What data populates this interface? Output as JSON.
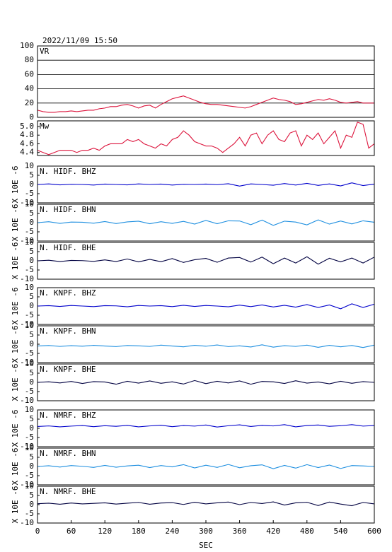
{
  "title": "2022/11/09 15:50",
  "chart_data": [
    {
      "type": "line",
      "title": "VR",
      "xlim": [
        0,
        600
      ],
      "ylim": [
        0,
        100
      ],
      "yticks": [
        0,
        20,
        40,
        60,
        80,
        100
      ],
      "grid": true,
      "x": [
        0,
        10,
        20,
        30,
        40,
        50,
        60,
        70,
        80,
        90,
        100,
        110,
        120,
        130,
        140,
        150,
        160,
        170,
        180,
        190,
        200,
        210,
        220,
        230,
        240,
        250,
        260,
        270,
        280,
        290,
        300,
        310,
        320,
        330,
        340,
        350,
        360,
        370,
        380,
        390,
        400,
        410,
        420,
        430,
        440,
        450,
        460,
        470,
        480,
        490,
        500,
        510,
        520,
        530,
        540,
        550,
        560,
        570,
        580,
        590,
        600
      ],
      "series": [
        {
          "color": "#dc143c",
          "values": [
            10,
            8,
            7,
            7,
            8,
            8,
            9,
            8,
            9,
            10,
            10,
            12,
            13,
            15,
            15,
            17,
            18,
            16,
            13,
            16,
            17,
            13,
            18,
            22,
            26,
            28,
            30,
            27,
            24,
            21,
            19,
            18,
            18,
            17,
            16,
            15,
            14,
            13,
            15,
            18,
            21,
            24,
            27,
            25,
            24,
            22,
            18,
            19,
            21,
            23,
            25,
            24,
            26,
            24,
            21,
            20,
            21,
            22,
            20,
            20,
            20
          ]
        }
      ]
    },
    {
      "type": "line",
      "title": "Mw",
      "xlim": [
        0,
        600
      ],
      "ylim": [
        4.33,
        5.13
      ],
      "yticks": [
        4.4,
        4.6,
        4.8,
        {
          "value": 5,
          "label": "5.0"
        }
      ],
      "grid": false,
      "x": [
        0,
        10,
        20,
        30,
        40,
        50,
        60,
        70,
        80,
        90,
        100,
        110,
        120,
        130,
        140,
        150,
        160,
        170,
        180,
        190,
        200,
        210,
        220,
        230,
        240,
        250,
        260,
        270,
        280,
        290,
        300,
        310,
        320,
        330,
        340,
        350,
        360,
        370,
        380,
        390,
        400,
        410,
        420,
        430,
        440,
        450,
        460,
        470,
        480,
        490,
        500,
        510,
        520,
        530,
        540,
        550,
        560,
        570,
        580,
        590,
        600
      ],
      "series": [
        {
          "color": "#dc143c",
          "values": [
            4.45,
            4.4,
            4.35,
            4.4,
            4.45,
            4.45,
            4.45,
            4.4,
            4.45,
            4.45,
            4.5,
            4.45,
            4.55,
            4.6,
            4.6,
            4.6,
            4.7,
            4.65,
            4.7,
            4.6,
            4.55,
            4.5,
            4.6,
            4.55,
            4.7,
            4.75,
            4.9,
            4.8,
            4.65,
            4.6,
            4.55,
            4.55,
            4.5,
            4.4,
            4.5,
            4.6,
            4.75,
            4.55,
            4.8,
            4.85,
            4.6,
            4.8,
            4.9,
            4.7,
            4.65,
            4.85,
            4.9,
            4.55,
            4.8,
            4.7,
            4.85,
            4.6,
            4.75,
            4.9,
            4.5,
            4.8,
            4.75,
            5.1,
            5.05,
            4.5,
            4.6
          ]
        }
      ]
    },
    {
      "type": "line",
      "title": "N. HIDF. BHZ",
      "ylabel": "X 10E -6",
      "xlim": [
        0,
        600
      ],
      "ylim": [
        -10,
        10
      ],
      "yticks": [
        -10,
        -5,
        0,
        5,
        10
      ],
      "grid": false,
      "x": [
        0,
        20,
        40,
        60,
        80,
        100,
        120,
        140,
        160,
        180,
        200,
        220,
        240,
        260,
        280,
        300,
        320,
        340,
        360,
        380,
        400,
        420,
        440,
        460,
        480,
        500,
        520,
        540,
        560,
        580,
        600
      ],
      "series": [
        {
          "color": "#0000cc",
          "values": [
            0,
            0.3,
            -0.2,
            0.1,
            0,
            -0.3,
            0.2,
            0,
            -0.2,
            0.3,
            0,
            0.2,
            -0.3,
            0.1,
            0,
            0.2,
            -0.1,
            0.4,
            -0.9,
            0.3,
            0,
            -0.4,
            0.5,
            -0.3,
            0.6,
            -0.5,
            0.3,
            -0.8,
            0.9,
            -0.6,
            0.2
          ]
        }
      ]
    },
    {
      "type": "line",
      "title": "N. HIDF. BHN",
      "ylabel": "X 10E -6",
      "xlim": [
        0,
        600
      ],
      "ylim": [
        -10,
        10
      ],
      "yticks": [
        -10,
        -5,
        0,
        5,
        10
      ],
      "grid": false,
      "x": [
        0,
        20,
        40,
        60,
        80,
        100,
        120,
        140,
        160,
        180,
        200,
        220,
        240,
        260,
        280,
        300,
        320,
        340,
        360,
        380,
        400,
        420,
        440,
        460,
        480,
        500,
        520,
        540,
        560,
        580,
        600
      ],
      "series": [
        {
          "color": "#1e8fe0",
          "values": [
            0,
            0.5,
            -0.4,
            0.3,
            0.2,
            -0.3,
            0.6,
            -0.5,
            0.4,
            0.8,
            -0.6,
            0.5,
            -0.4,
            0.7,
            -0.8,
            1.2,
            -0.6,
            1.0,
            0.9,
            -1.1,
            1.4,
            -1.5,
            0.8,
            0.3,
            -1.2,
            1.5,
            -0.8,
            0.9,
            -0.7,
            1.0,
            0.2
          ]
        }
      ]
    },
    {
      "type": "line",
      "title": "N. HIDF. BHE",
      "ylabel": "X 10E -6",
      "xlim": [
        0,
        600
      ],
      "ylim": [
        -10,
        10
      ],
      "yticks": [
        -10,
        -5,
        0,
        5,
        10
      ],
      "grid": false,
      "x": [
        0,
        20,
        40,
        60,
        80,
        100,
        120,
        140,
        160,
        180,
        200,
        220,
        240,
        260,
        280,
        300,
        320,
        340,
        360,
        380,
        400,
        420,
        440,
        460,
        480,
        500,
        520,
        540,
        560,
        580,
        600
      ],
      "series": [
        {
          "color": "#000040",
          "values": [
            0,
            0.3,
            -0.4,
            0.2,
            0.1,
            -0.3,
            0.5,
            -0.4,
            1.0,
            -0.6,
            0.8,
            -0.5,
            1.2,
            -0.9,
            0.6,
            1.3,
            -0.8,
            1.5,
            1.8,
            -0.7,
            2.0,
            -1.6,
            1.5,
            -1.2,
            2.2,
            -1.8,
            1.4,
            -0.6,
            1.5,
            -1.2,
            2.0
          ]
        }
      ]
    },
    {
      "type": "line",
      "title": "N. KNPF. BHZ",
      "ylabel": "X 10E -6",
      "xlim": [
        0,
        600
      ],
      "ylim": [
        -10,
        10
      ],
      "yticks": [
        -10,
        -5,
        0,
        5,
        10
      ],
      "grid": false,
      "x": [
        0,
        20,
        40,
        60,
        80,
        100,
        120,
        140,
        160,
        180,
        200,
        220,
        240,
        260,
        280,
        300,
        320,
        340,
        360,
        380,
        400,
        420,
        440,
        460,
        480,
        500,
        520,
        540,
        560,
        580,
        600
      ],
      "series": [
        {
          "color": "#0000cc",
          "values": [
            0,
            0.2,
            -0.2,
            0.3,
            0,
            -0.3,
            0.2,
            0.1,
            -0.4,
            0.3,
            0,
            0.2,
            -0.3,
            0.4,
            -0.2,
            0.3,
            0,
            -0.4,
            0.5,
            -0.3,
            0.6,
            -0.5,
            0.4,
            -0.6,
            0.8,
            -0.8,
            0.6,
            -1.5,
            1.2,
            -0.8,
            1.0
          ]
        }
      ]
    },
    {
      "type": "line",
      "title": "N. KNPF. BHN",
      "ylabel": "X 10E -6",
      "xlim": [
        0,
        600
      ],
      "ylim": [
        -10,
        10
      ],
      "yticks": [
        -10,
        -5,
        0,
        5,
        10
      ],
      "grid": false,
      "x": [
        0,
        20,
        40,
        60,
        80,
        100,
        120,
        140,
        160,
        180,
        200,
        220,
        240,
        260,
        280,
        300,
        320,
        340,
        360,
        380,
        400,
        420,
        440,
        460,
        480,
        500,
        520,
        540,
        560,
        580,
        600
      ],
      "series": [
        {
          "color": "#1e8fe0",
          "values": [
            -1,
            -0.7,
            -1.2,
            -0.8,
            -1.1,
            -0.6,
            -1.0,
            -1.3,
            -0.7,
            -0.9,
            -1.2,
            -0.5,
            -1.0,
            -1.4,
            -0.6,
            -1.1,
            -0.4,
            -1.3,
            -0.9,
            -1.5,
            -0.3,
            -1.6,
            -0.8,
            -1.2,
            -0.5,
            -1.7,
            -0.6,
            -1.4,
            -0.7,
            -1.8,
            -0.5
          ]
        }
      ]
    },
    {
      "type": "line",
      "title": "N. KNPF. BHE",
      "ylabel": "X 10E -6",
      "xlim": [
        0,
        600
      ],
      "ylim": [
        -10,
        10
      ],
      "yticks": [
        -10,
        -5,
        0,
        5,
        10
      ],
      "grid": false,
      "x": [
        0,
        20,
        40,
        60,
        80,
        100,
        120,
        140,
        160,
        180,
        200,
        220,
        240,
        260,
        280,
        300,
        320,
        340,
        360,
        380,
        400,
        420,
        440,
        460,
        480,
        500,
        520,
        540,
        560,
        580,
        600
      ],
      "series": [
        {
          "color": "#000040",
          "values": [
            0,
            0.3,
            -0.3,
            0.5,
            -0.6,
            0.4,
            0.2,
            -1.0,
            0.6,
            -0.4,
            0.8,
            -0.5,
            0.3,
            -0.9,
            1.0,
            -0.7,
            0.6,
            -0.3,
            0.8,
            -1.0,
            0.5,
            0.3,
            -0.6,
            0.9,
            -0.4,
            0.2,
            -0.8,
            0.6,
            -0.5,
            0.4,
            0
          ]
        }
      ]
    },
    {
      "type": "line",
      "title": "N. NMRF. BHZ",
      "ylabel": "X 10E -6",
      "xlim": [
        0,
        600
      ],
      "ylim": [
        -10,
        10
      ],
      "yticks": [
        -10,
        -5,
        0,
        5,
        10
      ],
      "grid": false,
      "x": [
        0,
        20,
        40,
        60,
        80,
        100,
        120,
        140,
        160,
        180,
        200,
        220,
        240,
        260,
        280,
        300,
        320,
        340,
        360,
        380,
        400,
        420,
        440,
        460,
        480,
        500,
        520,
        540,
        560,
        580,
        600
      ],
      "series": [
        {
          "color": "#0000cc",
          "values": [
            1,
            1.3,
            0.8,
            1.2,
            1.5,
            0.9,
            1.4,
            1.1,
            1.6,
            0.8,
            1.3,
            1.7,
            0.9,
            1.5,
            1.2,
            1.8,
            0.7,
            1.4,
            1.9,
            1.0,
            1.6,
            1.3,
            2.0,
            0.8,
            1.5,
            1.8,
            1.1,
            1.4,
            2.0,
            1.2,
            1.5
          ]
        }
      ]
    },
    {
      "type": "line",
      "title": "N. NMRF. BHN",
      "ylabel": "X 10E -6",
      "xlim": [
        0,
        600
      ],
      "ylim": [
        -10,
        10
      ],
      "yticks": [
        -10,
        -5,
        0,
        5,
        10
      ],
      "grid": false,
      "x": [
        0,
        20,
        40,
        60,
        80,
        100,
        120,
        140,
        160,
        180,
        200,
        220,
        240,
        260,
        280,
        300,
        320,
        340,
        360,
        380,
        400,
        420,
        440,
        460,
        480,
        500,
        520,
        540,
        560,
        580,
        600
      ],
      "series": [
        {
          "color": "#1e8fe0",
          "values": [
            0,
            0.4,
            -0.3,
            0.5,
            0.1,
            -0.5,
            0.6,
            -0.4,
            0.3,
            0.7,
            -0.6,
            0.5,
            -0.2,
            1.0,
            -0.8,
            0.7,
            -0.5,
            1.1,
            -0.7,
            0.4,
            0.9,
            -1.2,
            0.6,
            -0.9,
            1.0,
            -0.6,
            0.8,
            -1.1,
            0.5,
            0.3,
            0
          ]
        }
      ]
    },
    {
      "type": "line",
      "title": "N. NMRF. BHE",
      "ylabel": "X 10E -6",
      "xlabel": "SEC",
      "xlim": [
        0,
        600
      ],
      "xticks": [
        0,
        60,
        120,
        180,
        240,
        300,
        360,
        420,
        480,
        540,
        600
      ],
      "ylim": [
        -10,
        10
      ],
      "yticks": [
        -10,
        -5,
        0,
        5,
        10
      ],
      "grid": false,
      "x": [
        0,
        20,
        40,
        60,
        80,
        100,
        120,
        140,
        160,
        180,
        200,
        220,
        240,
        260,
        280,
        300,
        320,
        340,
        360,
        380,
        400,
        420,
        440,
        460,
        480,
        500,
        520,
        540,
        560,
        580,
        600
      ],
      "series": [
        {
          "color": "#000040",
          "values": [
            0.5,
            0.8,
            0.2,
            0.9,
            0.4,
            0.7,
            1.0,
            0.3,
            0.8,
            1.2,
            0.2,
            0.9,
            1.1,
            0.1,
            1.3,
            0.4,
            1.0,
            1.4,
            0.0,
            1.2,
            0.6,
            1.5,
            -0.2,
            1.0,
            1.3,
            -0.5,
            1.4,
            0.3,
            -0.6,
            1.2,
            0.4
          ]
        }
      ]
    }
  ]
}
